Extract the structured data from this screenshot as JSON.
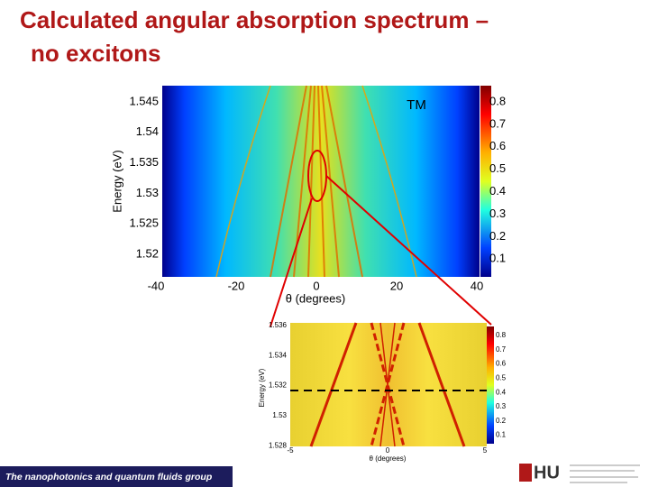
{
  "title": {
    "line1": "Calculated angular absorption spectrum –",
    "line2": "no excitons"
  },
  "main_plot": {
    "label": "TM",
    "y_axis_label": "Energy (eV)",
    "x_axis_label": "θ (degrees)",
    "y_ticks": [
      "1.545",
      "1.54",
      "1.535",
      "1.53",
      "1.525",
      "1.52"
    ],
    "x_ticks": [
      "-40",
      "-20",
      "0",
      "20",
      "40"
    ],
    "colorbar_ticks": [
      "0.8",
      "0.7",
      "0.6",
      "0.5",
      "0.4",
      "0.3",
      "0.2",
      "0.1"
    ]
  },
  "inset_plot": {
    "y_axis_label": "Energy (eV)",
    "x_axis_label": "θ (degrees)",
    "y_ticks": [
      "1.536",
      "1.534",
      "1.532",
      "1.53",
      "1.528"
    ],
    "x_ticks": [
      "-5",
      "0",
      "5"
    ],
    "colorbar_ticks": [
      "0.8",
      "0.7",
      "0.6",
      "0.5",
      "0.4",
      "0.3",
      "0.2",
      "0.1"
    ]
  },
  "footer": {
    "group": "The nanophotonics and quantum fluids group"
  },
  "logo": {
    "text": "HU"
  }
}
